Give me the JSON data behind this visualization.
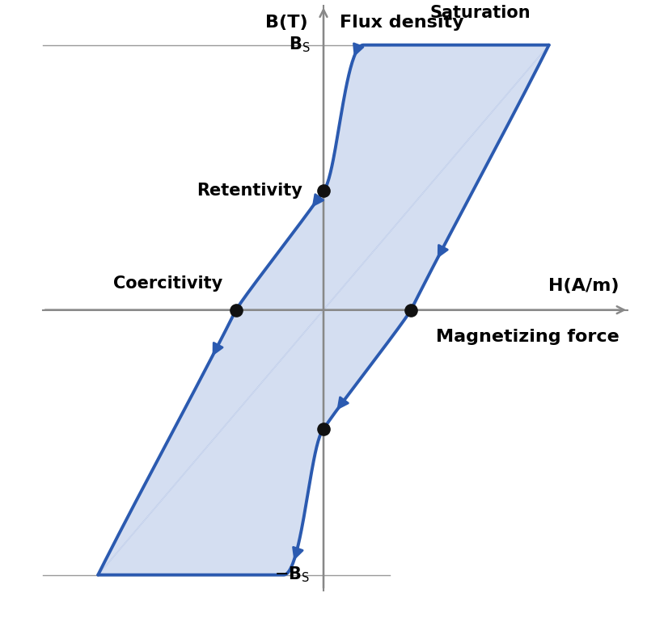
{
  "loop_color": "#2b5ab0",
  "loop_fill_color": "#b8c8e8",
  "loop_fill_alpha": 0.6,
  "dot_color": "#111111",
  "dot_size": 120,
  "Bs": 1.0,
  "Hc": 0.33,
  "Br": 0.45,
  "Hs_outer": 0.85,
  "Hs_inner": 0.42,
  "Bs_inner": 0.75,
  "xlim": [
    -1.15,
    1.15
  ],
  "ylim": [
    -1.15,
    1.15
  ],
  "label_fontsize": 16,
  "annot_fontsize": 15,
  "ref_line_color": "#999999",
  "axis_color": "#888888"
}
